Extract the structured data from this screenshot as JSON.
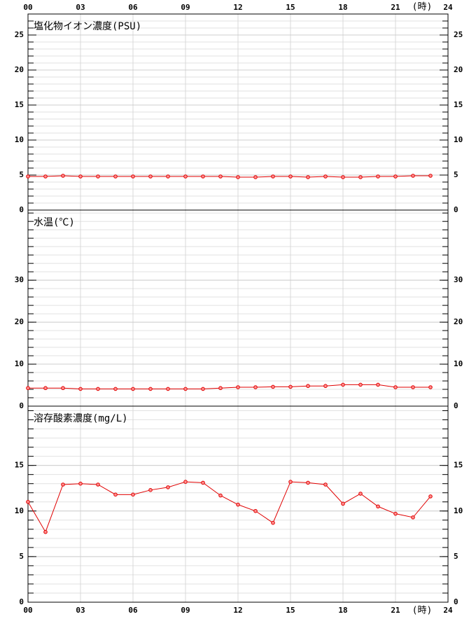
{
  "chart_data": [
    {
      "type": "line",
      "title": "塩化物イオン濃度(PSU)",
      "xlabel": "(時)",
      "xaxis_position": "top",
      "x": [
        0,
        1,
        2,
        3,
        4,
        5,
        6,
        7,
        8,
        9,
        10,
        11,
        12,
        13,
        14,
        15,
        16,
        17,
        18,
        19,
        20,
        21,
        22,
        23
      ],
      "values": [
        4.8,
        4.8,
        4.9,
        4.8,
        4.8,
        4.8,
        4.8,
        4.8,
        4.8,
        4.8,
        4.8,
        4.8,
        4.7,
        4.7,
        4.8,
        4.8,
        4.7,
        4.8,
        4.7,
        4.7,
        4.8,
        4.8,
        4.9,
        4.9
      ],
      "color": "#e00000",
      "xlim": [
        0,
        24
      ],
      "xticks": [
        {
          "value": 0,
          "label": "00"
        },
        {
          "value": 3,
          "label": "03"
        },
        {
          "value": 6,
          "label": "06"
        },
        {
          "value": 9,
          "label": "09"
        },
        12,
        15,
        18,
        21,
        24
      ],
      "ylim": [
        0,
        28
      ],
      "yticks": [
        0,
        5,
        10,
        15,
        20,
        25
      ],
      "minor_ytick_step": 1,
      "grid": true
    },
    {
      "type": "line",
      "title": "水温(℃)",
      "x": [
        0,
        1,
        2,
        3,
        4,
        5,
        6,
        7,
        8,
        9,
        10,
        11,
        12,
        13,
        14,
        15,
        16,
        17,
        18,
        19,
        20,
        21,
        22,
        23
      ],
      "values": [
        4.3,
        4.3,
        4.3,
        4.1,
        4.1,
        4.1,
        4.1,
        4.1,
        4.1,
        4.1,
        4.1,
        4.3,
        4.5,
        4.5,
        4.6,
        4.6,
        4.8,
        4.8,
        5.1,
        5.1,
        5.1,
        4.5,
        4.5,
        4.5
      ],
      "color": "#e00000",
      "xlim": [
        0,
        24
      ],
      "xticks": [
        {
          "value": 0,
          "label": "00"
        },
        {
          "value": 3,
          "label": "03"
        },
        {
          "value": 6,
          "label": "06"
        },
        {
          "value": 9,
          "label": "09"
        },
        12,
        15,
        18,
        21,
        24
      ],
      "ylim": [
        0,
        46.7
      ],
      "yticks": [
        0,
        10,
        20,
        30
      ],
      "minor_ytick_step": 2,
      "grid": true
    },
    {
      "type": "line",
      "title": "溶存酸素濃度(mg/L)",
      "xlabel": "(時)",
      "xaxis_position": "bottom",
      "x": [
        0,
        1,
        2,
        3,
        4,
        5,
        6,
        7,
        8,
        9,
        10,
        11,
        12,
        13,
        14,
        15,
        16,
        17,
        18,
        19,
        20,
        21,
        22,
        23
      ],
      "values": [
        11.0,
        7.7,
        12.9,
        13.0,
        12.9,
        11.8,
        11.8,
        12.3,
        12.6,
        13.2,
        13.1,
        11.7,
        10.7,
        10.0,
        8.7,
        13.2,
        13.1,
        12.9,
        10.8,
        11.9,
        10.5,
        9.7,
        9.3,
        11.6
      ],
      "color": "#e00000",
      "xlim": [
        0,
        24
      ],
      "xticks": [
        {
          "value": 0,
          "label": "00"
        },
        {
          "value": 3,
          "label": "03"
        },
        {
          "value": 6,
          "label": "06"
        },
        {
          "value": 9,
          "label": "09"
        },
        12,
        15,
        18,
        21,
        24
      ],
      "ylim": [
        0,
        21.5
      ],
      "yticks": [
        0,
        5,
        10,
        15
      ],
      "minor_ytick_step": 1,
      "grid": true
    }
  ]
}
